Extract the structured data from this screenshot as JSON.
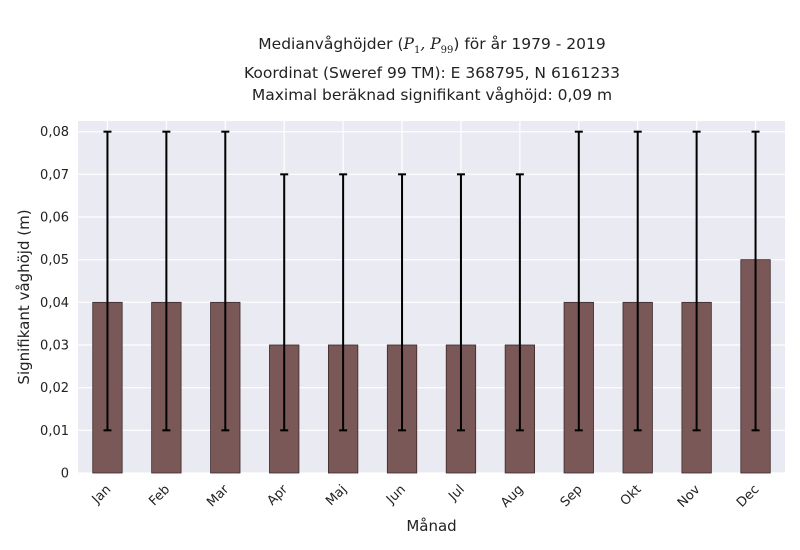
{
  "title": {
    "line1_prefix": "Medianvåghöjder (",
    "line1_p1": "P",
    "line1_p1_sub": "1",
    "line1_sep": ", ",
    "line1_p99": "P",
    "line1_p99_sub": "99",
    "line1_suffix": ") för år 1979 - 2019",
    "line2": "Koordinat (Sweref 99 TM): E 368795, N 6161233",
    "line3": "Maximal beräknad signifikant våghöjd: 0,09 m"
  },
  "chart_data": {
    "type": "bar",
    "title": "Medianvåghöjder (P1, P99) för år 1979 - 2019",
    "xlabel": "Månad",
    "ylabel": "Signifikant våghöjd (m)",
    "categories": [
      "Jan",
      "Feb",
      "Mar",
      "Apr",
      "Maj",
      "Jun",
      "Jul",
      "Aug",
      "Sep",
      "Okt",
      "Nov",
      "Dec"
    ],
    "values": [
      0.04,
      0.04,
      0.04,
      0.03,
      0.03,
      0.03,
      0.03,
      0.03,
      0.04,
      0.04,
      0.04,
      0.05
    ],
    "error_low": [
      0.01,
      0.01,
      0.01,
      0.01,
      0.01,
      0.01,
      0.01,
      0.01,
      0.01,
      0.01,
      0.01,
      0.01
    ],
    "error_high": [
      0.08,
      0.08,
      0.08,
      0.07,
      0.07,
      0.07,
      0.07,
      0.07,
      0.08,
      0.08,
      0.08,
      0.08
    ],
    "ylim": [
      0,
      0.0825
    ],
    "yticks": [
      0,
      0.01,
      0.02,
      0.03,
      0.04,
      0.05,
      0.06,
      0.07,
      0.08
    ],
    "ytick_labels": [
      "0",
      "0,01",
      "0,02",
      "0,03",
      "0,04",
      "0,05",
      "0,06",
      "0,07",
      "0,08"
    ],
    "grid": true,
    "colors": {
      "bar_fill": "#7b5858",
      "bar_edge": "#3a2a2a",
      "error_bar": "#000000",
      "plot_background": "#eaeaf2",
      "grid": "#ffffff"
    }
  }
}
